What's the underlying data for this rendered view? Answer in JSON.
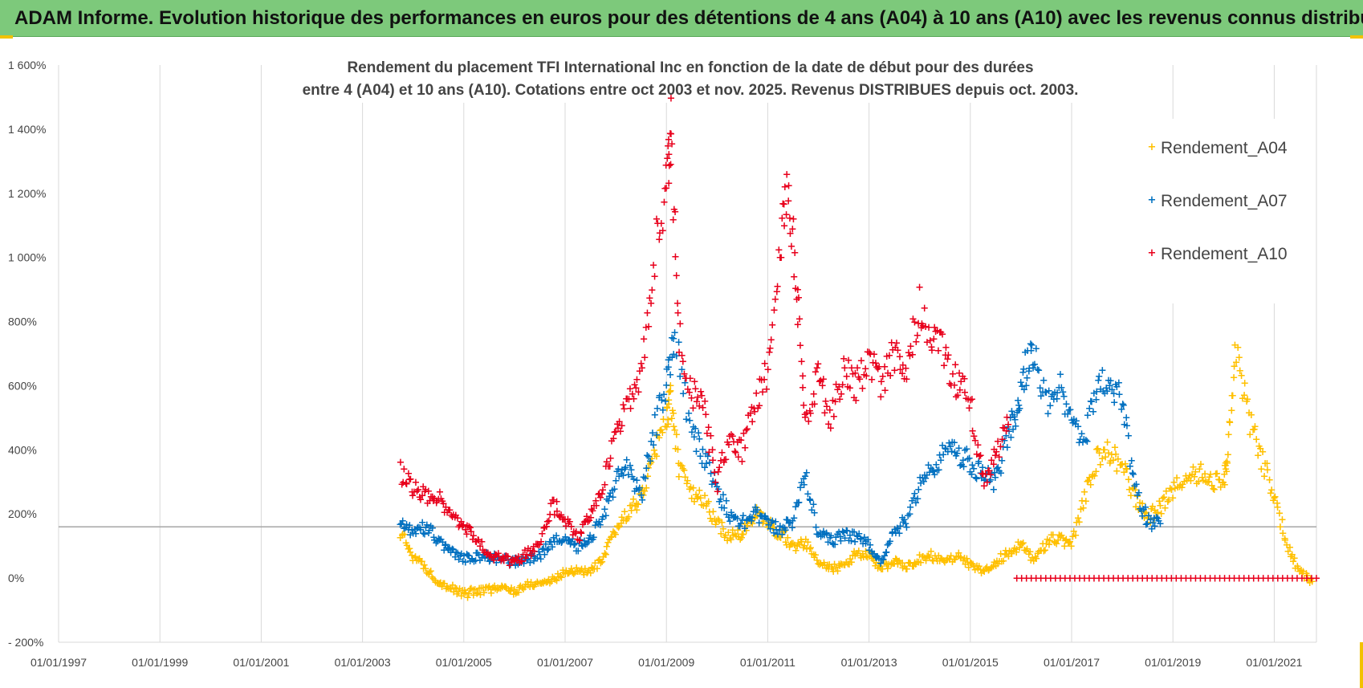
{
  "banner": {
    "title": "ADAM Informe. Evolution historique des performances en euros pour des détentions de 4 ans (A04) à 10 ans (A10) avec les revenus connus distribués"
  },
  "colors": {
    "banner_bg": "#7dc97b",
    "a04": "#ffc000",
    "a07": "#0070c0",
    "a10": "#e8001c",
    "gridline": "#d9d9d9",
    "refline": "#a6a6a6"
  },
  "chart_data": {
    "type": "scatter",
    "title_lines": [
      "Rendement du placement TFI International Inc en fonction de la date de début pour des durées",
      "entre 4 (A04) et 10 ans (A10). Cotations entre oct 2003 et nov. 2025. Revenus DISTRIBUES depuis oct. 2003."
    ],
    "xlabel": "",
    "ylabel": "",
    "x_ticks": [
      "01/01/1997",
      "01/01/1999",
      "01/01/2001",
      "01/01/2003",
      "01/01/2005",
      "01/01/2007",
      "01/01/2009",
      "01/01/2011",
      "01/01/2013",
      "01/01/2015",
      "01/01/2017",
      "01/01/2019",
      "01/01/2021"
    ],
    "xlim": [
      "01/01/1997",
      "01/11/2021"
    ],
    "y_ticks": [
      "- 200%",
      "0%",
      "200%",
      "400%",
      "600%",
      "800%",
      "1 000%",
      "1 200%",
      "1 400%",
      "1 600%"
    ],
    "ylim": [
      -200,
      1600
    ],
    "reference_line_y": 160,
    "grid": "vertical",
    "legend_position": "top-right",
    "marker": "+",
    "series": [
      {
        "name": "Rendement_A04",
        "color_key": "a04",
        "x": [
          "2003-10",
          "2004-01",
          "2004-04",
          "2004-07",
          "2004-10",
          "2005-01",
          "2005-04",
          "2005-07",
          "2005-10",
          "2006-01",
          "2006-04",
          "2006-07",
          "2006-10",
          "2007-01",
          "2007-04",
          "2007-07",
          "2007-10",
          "2008-01",
          "2008-04",
          "2008-07",
          "2008-10",
          "2009-01",
          "2009-02",
          "2009-04",
          "2009-07",
          "2009-10",
          "2010-01",
          "2010-04",
          "2010-07",
          "2010-10",
          "2011-01",
          "2011-04",
          "2011-07",
          "2011-10",
          "2012-01",
          "2012-04",
          "2012-07",
          "2012-10",
          "2013-01",
          "2013-04",
          "2013-07",
          "2013-10",
          "2014-01",
          "2014-04",
          "2014-07",
          "2014-10",
          "2015-01",
          "2015-04",
          "2015-07",
          "2015-10",
          "2016-01",
          "2016-04",
          "2016-07",
          "2016-10",
          "2017-01",
          "2017-04",
          "2017-07",
          "2017-10",
          "2018-01",
          "2018-04",
          "2018-07",
          "2018-10",
          "2019-01",
          "2019-04",
          "2019-07",
          "2019-10",
          "2020-01",
          "2020-02",
          "2020-04",
          "2020-07",
          "2020-10",
          "2021-01",
          "2021-04",
          "2021-07",
          "2021-10"
        ],
        "y": [
          140,
          70,
          30,
          -10,
          -30,
          -50,
          -40,
          -35,
          -30,
          -40,
          -20,
          -15,
          -5,
          20,
          25,
          20,
          60,
          150,
          210,
          250,
          380,
          500,
          560,
          350,
          260,
          240,
          170,
          130,
          140,
          200,
          170,
          140,
          100,
          110,
          50,
          30,
          40,
          80,
          70,
          30,
          50,
          40,
          60,
          70,
          60,
          70,
          40,
          20,
          50,
          80,
          110,
          60,
          110,
          130,
          100,
          250,
          380,
          390,
          350,
          250,
          190,
          220,
          270,
          320,
          330,
          300,
          310,
          380,
          720,
          500,
          370,
          260,
          100,
          20,
          -10
        ]
      },
      {
        "name": "Rendement_A07",
        "color_key": "a07",
        "x": [
          "2003-10",
          "2004-01",
          "2004-04",
          "2004-07",
          "2004-10",
          "2005-01",
          "2005-04",
          "2005-07",
          "2005-10",
          "2006-01",
          "2006-04",
          "2006-07",
          "2006-10",
          "2007-01",
          "2007-04",
          "2007-07",
          "2007-10",
          "2008-01",
          "2008-04",
          "2008-07",
          "2008-10",
          "2009-01",
          "2009-03",
          "2009-07",
          "2009-10",
          "2010-01",
          "2010-04",
          "2010-07",
          "2010-10",
          "2011-01",
          "2011-04",
          "2011-07",
          "2011-10",
          "2012-01",
          "2012-04",
          "2012-07",
          "2012-10",
          "2013-01",
          "2013-04",
          "2013-07",
          "2013-10",
          "2014-01",
          "2014-04",
          "2014-07",
          "2014-10",
          "2015-01",
          "2015-04",
          "2015-07",
          "2015-10",
          "2015-12",
          "2016-02",
          "2016-04",
          "2016-07",
          "2016-10",
          "2017-01",
          "2017-04",
          "2017-07",
          "2017-10",
          "2018-01",
          "2018-04",
          "2018-07",
          "2018-10"
        ],
        "y": [
          170,
          150,
          160,
          120,
          80,
          60,
          70,
          65,
          60,
          50,
          60,
          70,
          110,
          130,
          100,
          120,
          200,
          300,
          350,
          250,
          450,
          620,
          750,
          450,
          380,
          280,
          200,
          170,
          200,
          170,
          150,
          180,
          330,
          140,
          120,
          130,
          130,
          100,
          50,
          150,
          180,
          300,
          340,
          400,
          390,
          360,
          330,
          300,
          450,
          520,
          650,
          700,
          550,
          600,
          500,
          420,
          600,
          640,
          540,
          280,
          180,
          170
        ]
      },
      {
        "name": "Rendement_A10",
        "color_key": "a10",
        "x": [
          "2003-10",
          "2004-01",
          "2004-04",
          "2004-07",
          "2004-10",
          "2005-01",
          "2005-04",
          "2005-07",
          "2005-10",
          "2006-01",
          "2006-04",
          "2006-07",
          "2006-10",
          "2007-01",
          "2007-04",
          "2007-07",
          "2007-10",
          "2008-01",
          "2008-04",
          "2008-07",
          "2008-10",
          "2009-01",
          "2009-02",
          "2009-04",
          "2009-07",
          "2009-10",
          "2010-01",
          "2010-04",
          "2010-07",
          "2010-10",
          "2011-01",
          "2011-04",
          "2011-06",
          "2011-08",
          "2011-10",
          "2012-01",
          "2012-04",
          "2012-07",
          "2012-10",
          "2013-01",
          "2013-04",
          "2013-07",
          "2013-10",
          "2014-01",
          "2014-04",
          "2014-07",
          "2014-10",
          "2015-01",
          "2015-04",
          "2015-07",
          "2015-10"
        ],
        "y": [
          330,
          280,
          260,
          250,
          200,
          160,
          120,
          80,
          60,
          50,
          80,
          100,
          230,
          180,
          130,
          200,
          300,
          450,
          550,
          620,
          1000,
          1200,
          1400,
          750,
          580,
          520,
          300,
          450,
          400,
          550,
          650,
          1050,
          1200,
          900,
          500,
          620,
          500,
          650,
          600,
          680,
          600,
          700,
          650,
          850,
          750,
          700,
          600,
          550,
          300,
          380,
          480
        ]
      }
    ],
    "a10_zero_segment": {
      "x_start": "2015-12",
      "x_end": "2021-11",
      "y": 0
    }
  }
}
